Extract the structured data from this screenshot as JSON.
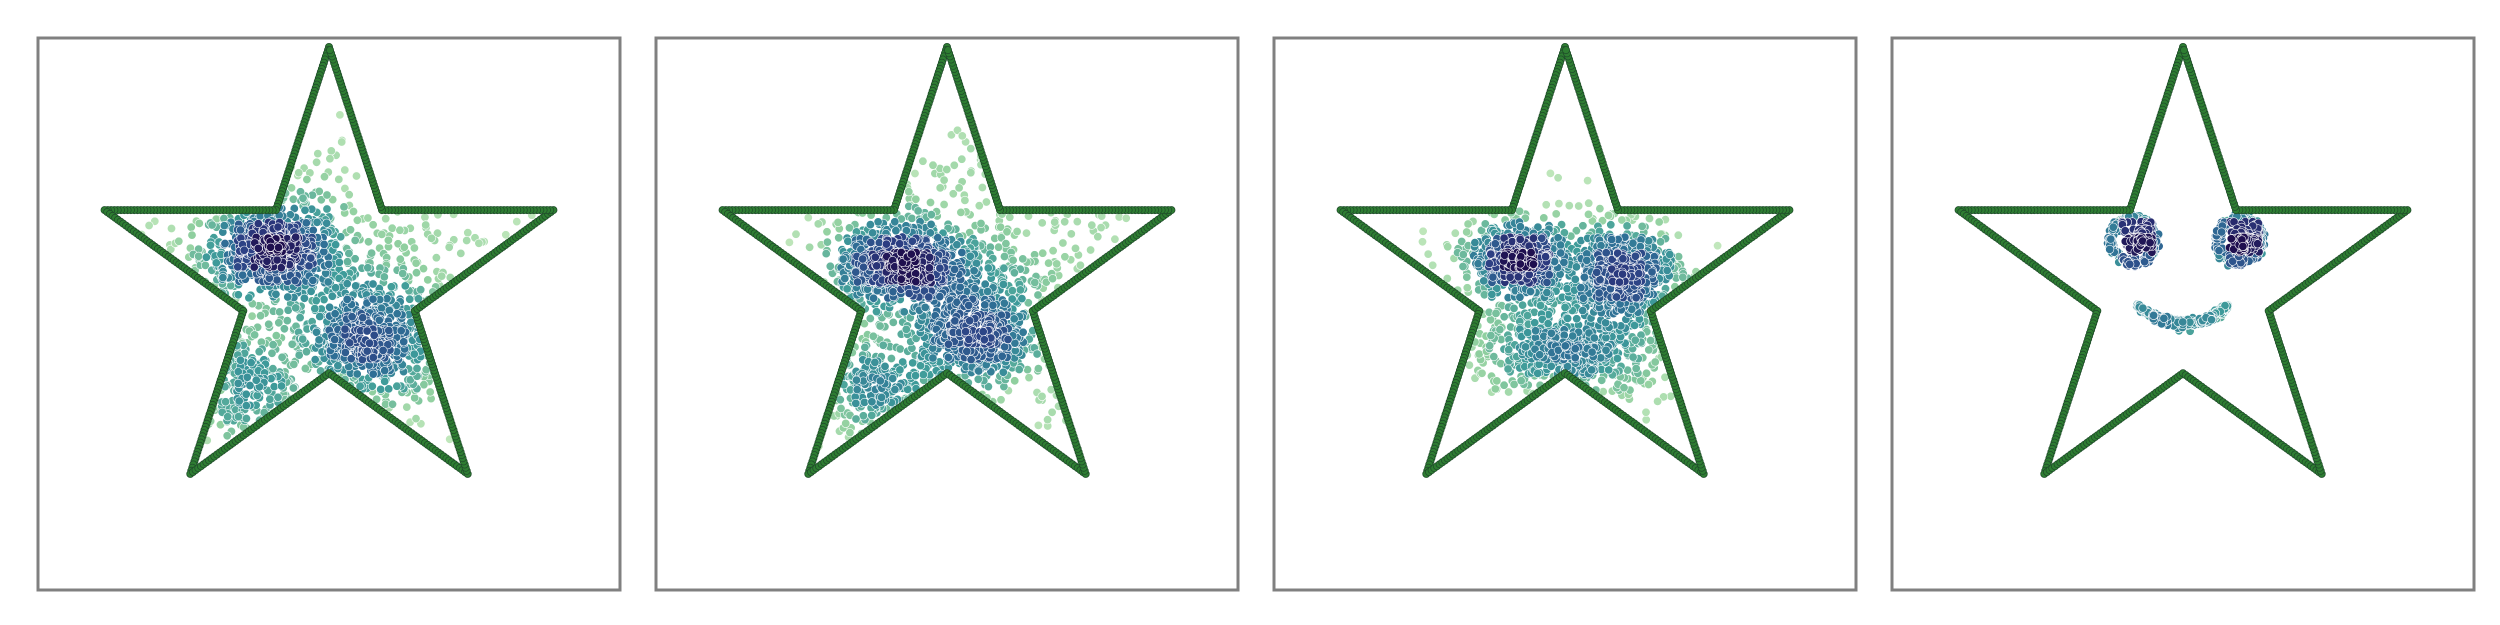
{
  "chart_data": [
    {
      "type": "scatter",
      "description_panel": "panel-1",
      "xlim": [
        -1.25,
        1.25
      ],
      "ylim": [
        -1.0,
        1.0
      ],
      "colormap": [
        "#1f0f4f",
        "#2d3f84",
        "#2f6f96",
        "#3e9b9a",
        "#8fcf9f",
        "#c8ebc0"
      ],
      "star": {
        "outer_radius": 1.0,
        "inner_radius": 0.382,
        "color": "#2e7d32"
      },
      "clusters": [
        {
          "cx": -0.24,
          "cy": 0.14,
          "sx": 0.15,
          "sy": 0.09,
          "n": 650
        },
        {
          "cx": 0.18,
          "cy": -0.25,
          "sx": 0.17,
          "sy": 0.13,
          "n": 550
        },
        {
          "cx": 0.0,
          "cy": 0.0,
          "sx": 0.45,
          "sy": 0.35,
          "n": 400
        },
        {
          "cx": -0.4,
          "cy": -0.45,
          "sx": 0.12,
          "sy": 0.12,
          "n": 160
        }
      ]
    },
    {
      "type": "scatter",
      "description_panel": "panel-2",
      "xlim": [
        -1.25,
        1.25
      ],
      "ylim": [
        -1.0,
        1.0
      ],
      "colormap": [
        "#1f0f4f",
        "#2d3f84",
        "#2f6f96",
        "#3e9b9a",
        "#8fcf9f",
        "#c8ebc0"
      ],
      "star": {
        "outer_radius": 1.0,
        "inner_radius": 0.382,
        "color": "#2e7d32"
      },
      "clusters": [
        {
          "cx": -0.2,
          "cy": 0.08,
          "sx": 0.13,
          "sy": 0.08,
          "n": 600
        },
        {
          "cx": 0.12,
          "cy": -0.22,
          "sx": 0.15,
          "sy": 0.12,
          "n": 550
        },
        {
          "cx": 0.05,
          "cy": 0.05,
          "sx": 0.35,
          "sy": 0.3,
          "n": 500
        },
        {
          "cx": -0.3,
          "cy": -0.45,
          "sx": 0.15,
          "sy": 0.1,
          "n": 200
        }
      ]
    },
    {
      "type": "scatter",
      "description_panel": "panel-3",
      "xlim": [
        -1.25,
        1.25
      ],
      "ylim": [
        -1.0,
        1.0
      ],
      "colormap": [
        "#1f0f4f",
        "#2d3f84",
        "#2f6f96",
        "#3e9b9a",
        "#8fcf9f",
        "#c8ebc0"
      ],
      "star": {
        "outer_radius": 1.0,
        "inner_radius": 0.382,
        "color": "#2e7d32"
      },
      "clusters": [
        {
          "cx": -0.2,
          "cy": 0.1,
          "sx": 0.1,
          "sy": 0.07,
          "n": 550
        },
        {
          "cx": 0.25,
          "cy": 0.05,
          "sx": 0.12,
          "sy": 0.09,
          "n": 550
        },
        {
          "cx": 0.02,
          "cy": -0.3,
          "sx": 0.22,
          "sy": 0.1,
          "n": 450
        },
        {
          "cx": 0.0,
          "cy": -0.05,
          "sx": 0.25,
          "sy": 0.2,
          "n": 350
        }
      ]
    },
    {
      "type": "scatter",
      "description_panel": "panel-4",
      "xlim": [
        -1.25,
        1.25
      ],
      "ylim": [
        -1.0,
        1.0
      ],
      "colormap": [
        "#1f0f4f",
        "#2d3f84",
        "#2f6f96",
        "#3e9b9a",
        "#8fcf9f",
        "#c8ebc0"
      ],
      "star": {
        "outer_radius": 1.0,
        "inner_radius": 0.382,
        "color": "#2e7d32"
      },
      "face": {
        "eyes": [
          {
            "cx": -0.21,
            "cy": 0.18,
            "ring_r": 0.095,
            "pupil_dx": 0.02,
            "pupil_r": 0.05
          },
          {
            "cx": 0.24,
            "cy": 0.18,
            "ring_r": 0.095,
            "pupil_dx": 0.02,
            "pupil_r": 0.05
          }
        ],
        "mouth": {
          "cx": 0.0,
          "cy": -0.05,
          "rx": 0.2,
          "ry": 0.12,
          "a0": 200,
          "a1": 340
        }
      }
    }
  ]
}
